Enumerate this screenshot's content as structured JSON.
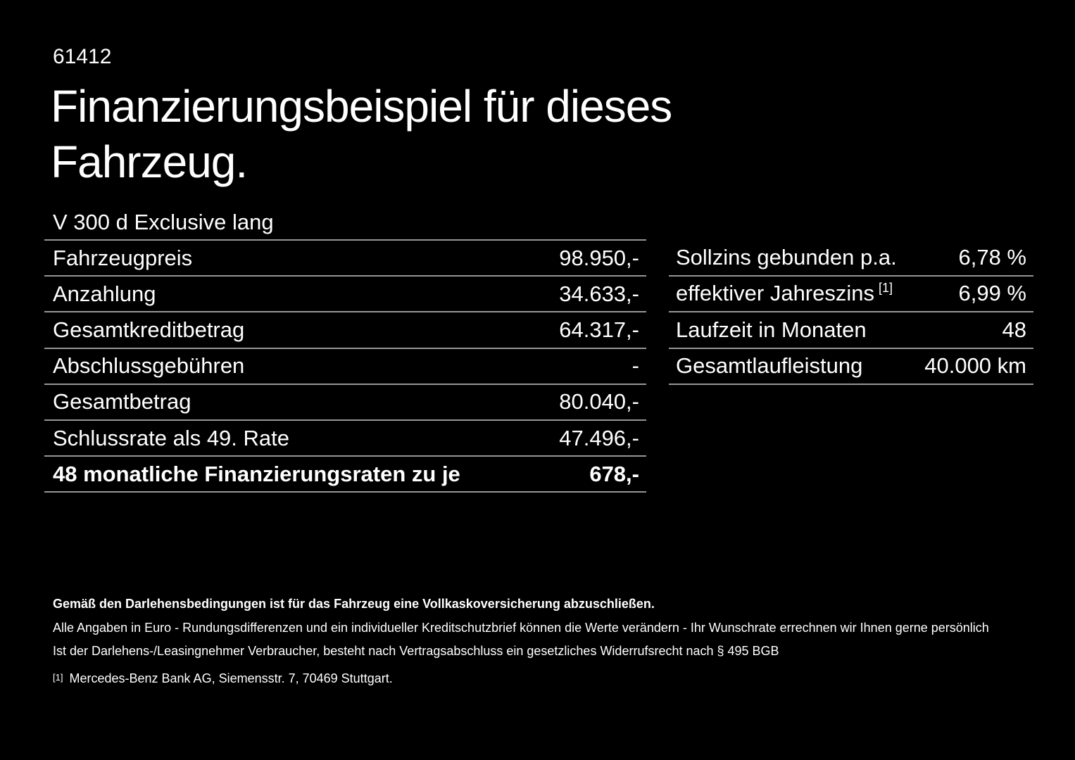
{
  "page": {
    "id_number": "61412",
    "title": "Finanzierungsbeispiel für dieses\nFahrzeug.",
    "vehicle_model": "V 300 d Exclusive lang"
  },
  "left_table": {
    "rows": [
      {
        "label": "Fahrzeugpreis",
        "value": "98.950,-"
      },
      {
        "label": "Anzahlung",
        "value": "34.633,-"
      },
      {
        "label": "Gesamtkreditbetrag",
        "value": "64.317,-"
      },
      {
        "label": "Abschlussgebühren",
        "value": "-"
      },
      {
        "label": "Gesamtbetrag",
        "value": "80.040,-"
      },
      {
        "label": "Schlussrate als 49. Rate",
        "value": "47.496,-"
      },
      {
        "label": "48 monatliche Finanzierungsraten zu je",
        "value": "678,-"
      }
    ]
  },
  "right_table": {
    "rows": [
      {
        "label": "Sollzins gebunden p.a.",
        "value": "6,78 %"
      },
      {
        "label": "effektiver Jahreszins",
        "label_superscript": "[1]",
        "value": "6,99 %"
      },
      {
        "label": "Laufzeit in Monaten",
        "value": "48"
      },
      {
        "label": "Gesamtlaufleistung",
        "value": "40.000 km"
      }
    ]
  },
  "footnotes": {
    "insurance_bold": "Gemäß den Darlehensbedingungen ist für das Fahrzeug eine Vollkaskoversicherung abzuschließen.",
    "disclaimer": "Alle Angaben in Euro - Rundungsdifferenzen und ein individueller Kreditschutzbrief können die Werte verändern - Ihr Wunschrate errechnen wir Ihnen gerne persönlich",
    "withdrawal": "Ist der Darlehens-/Leasingnehmer Verbraucher, besteht nach Vertragsabschluss ein gesetzliches Widerrufsrecht nach § 495 BGB",
    "reference_marker": "[1]",
    "reference_text": "Mercedes-Benz Bank AG, Siemensstr. 7, 70469 Stuttgart."
  },
  "colors": {
    "background": "#000000",
    "text": "#ffffff",
    "divider": "#969696"
  }
}
